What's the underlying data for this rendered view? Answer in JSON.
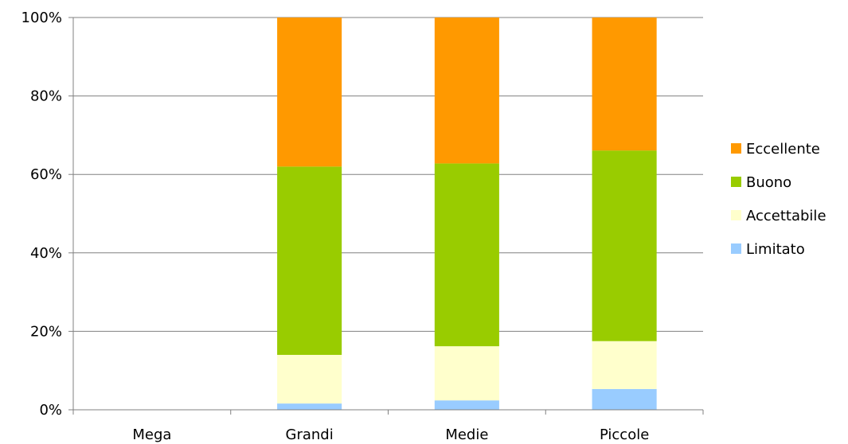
{
  "chart_data": {
    "type": "bar",
    "stacked": true,
    "normalized": true,
    "categories": [
      "Mega",
      "Grandi",
      "Medie",
      "Piccole"
    ],
    "series": [
      {
        "name": "Limitato",
        "color": "#99ccff",
        "values": [
          0,
          1.6,
          2.4,
          5.3
        ]
      },
      {
        "name": "Accettabile",
        "color": "#ffffcc",
        "values": [
          0,
          12.4,
          13.8,
          12.2
        ]
      },
      {
        "name": "Buono",
        "color": "#99cc00",
        "values": [
          0,
          48.0,
          46.6,
          48.6
        ]
      },
      {
        "name": "Eccellente",
        "color": "#ff9900",
        "values": [
          0,
          38.0,
          37.2,
          33.9
        ]
      }
    ],
    "ylim": [
      0,
      100
    ],
    "yticks": [
      "0%",
      "20%",
      "40%",
      "60%",
      "80%",
      "100%"
    ],
    "ytick_values": [
      0,
      20,
      40,
      60,
      80,
      100
    ],
    "grid": true,
    "legend_position": "right",
    "legend_order": [
      "Eccellente",
      "Buono",
      "Accettabile",
      "Limitato"
    ]
  }
}
